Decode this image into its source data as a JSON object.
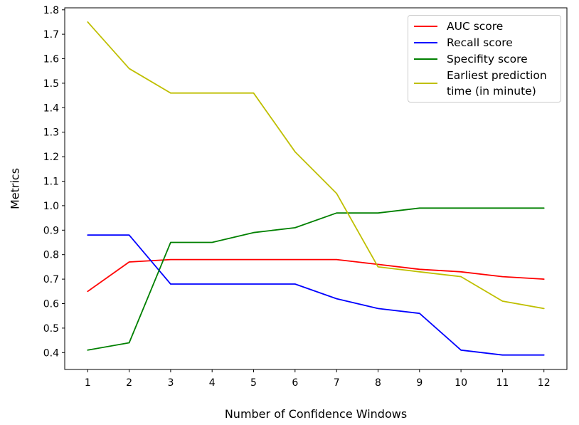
{
  "figure": {
    "background": "#ffffff",
    "axis_color": "#000000",
    "legend_border_color": "#cccccc"
  },
  "chart_data": {
    "type": "line",
    "title": "",
    "xlabel": "Number of Confidence Windows",
    "ylabel": "Metrics",
    "x": [
      1,
      2,
      3,
      4,
      5,
      6,
      7,
      8,
      9,
      10,
      11,
      12
    ],
    "x_ticks": [
      1,
      2,
      3,
      4,
      5,
      6,
      7,
      8,
      9,
      10,
      11,
      12
    ],
    "y_ticks": [
      0.4,
      0.5,
      0.6,
      0.7,
      0.8,
      0.9,
      1.0,
      1.1,
      1.2,
      1.3,
      1.4,
      1.5,
      1.6,
      1.7,
      1.8
    ],
    "xlim": [
      0.446,
      12.554
    ],
    "ylim": [
      0.331,
      1.808
    ],
    "grid": false,
    "legend_position": "upper right",
    "series": [
      {
        "id": "auc-score",
        "name": "AUC score",
        "color": "#ff0000",
        "values": [
          0.65,
          0.77,
          0.78,
          0.78,
          0.78,
          0.78,
          0.78,
          0.76,
          0.74,
          0.73,
          0.71,
          0.7
        ]
      },
      {
        "id": "recall-score",
        "name": "Recall score",
        "color": "#0000ff",
        "values": [
          0.88,
          0.88,
          0.68,
          0.68,
          0.68,
          0.68,
          0.62,
          0.58,
          0.56,
          0.41,
          0.39,
          0.39
        ]
      },
      {
        "id": "specifity-score",
        "name": "Specifity score",
        "color": "#008000",
        "values": [
          0.41,
          0.44,
          0.85,
          0.85,
          0.89,
          0.91,
          0.97,
          0.97,
          0.99,
          0.99,
          0.99,
          0.99
        ]
      },
      {
        "id": "earliest-prediction-time",
        "name": "Earliest prediction\ntime (in minute)",
        "color": "#bfbf00",
        "values": [
          1.75,
          1.56,
          1.46,
          1.46,
          1.46,
          1.22,
          1.05,
          0.75,
          0.73,
          0.71,
          0.61,
          0.58
        ]
      }
    ]
  }
}
